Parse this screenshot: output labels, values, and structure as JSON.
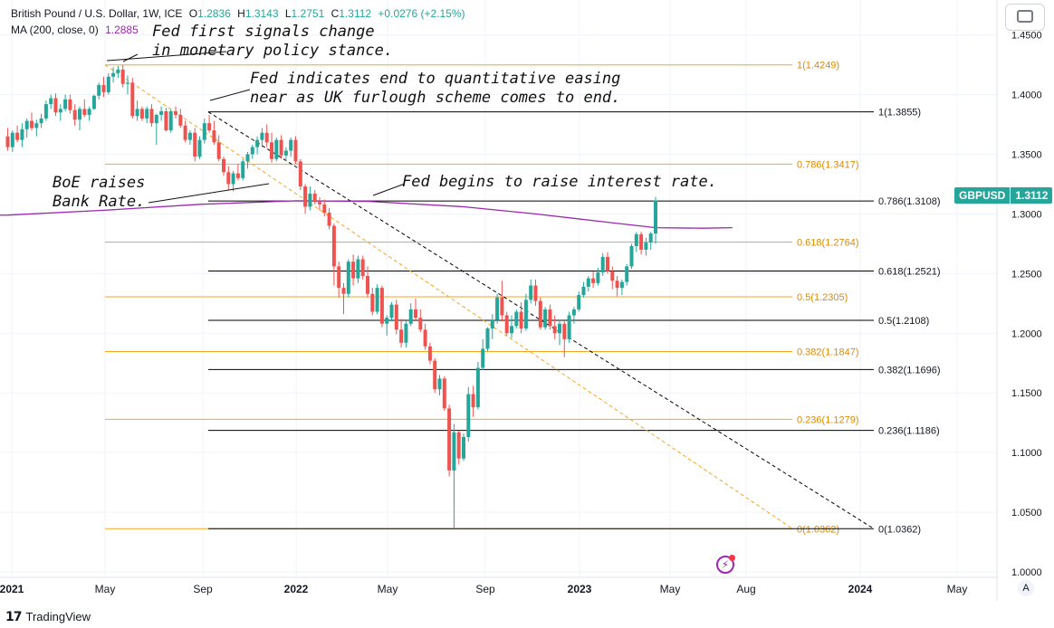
{
  "header": {
    "symbol_title": "British Pound / U.S. Dollar, 1W, ICE",
    "open_label": "O",
    "open_value": "1.2836",
    "high_label": "H",
    "high_value": "1.3143",
    "low_label": "L",
    "low_value": "1.2751",
    "close_label": "C",
    "close_value": "1.3112",
    "change": "+0.0276 (+2.15%)",
    "ma_label": "MA (200, close, 0)",
    "ma_value": "1.2885"
  },
  "price_badge": {
    "symbol": "GBPUSD",
    "value": "1.3112"
  },
  "annotations": {
    "fed_first": "Fed first signals change\nin monetary policy stance.",
    "fed_qe": "Fed indicates end to quantitative easing\nnear as UK furlough scheme comes to end.",
    "boe": "BoE raises\nBank Rate.",
    "fed_raise": "Fed begins to raise interest rate."
  },
  "footer": {
    "brand": "TradingView",
    "auto_button": "A"
  },
  "colors": {
    "up": "#26a69a",
    "down": "#ef5350",
    "ma": "#9c27b0",
    "fib_orange": "#f5a623",
    "fib_black": "#000000",
    "grid": "#f0f3fa"
  },
  "chart_data": {
    "type": "candlestick",
    "title": "British Pound / U.S. Dollar, 1W, ICE",
    "ylim": [
      0.995,
      1.475
    ],
    "y_ticks": [
      "1.0000",
      "1.0500",
      "1.1000",
      "1.1500",
      "1.2000",
      "1.2500",
      "1.3000",
      "1.3500",
      "1.4000",
      "1.4500"
    ],
    "x_ticks": [
      "2021",
      "May",
      "Sep",
      "2022",
      "May",
      "Sep",
      "2023",
      "May",
      "Aug",
      "2024",
      "May"
    ],
    "fib_orange": [
      {
        "label": "1(1.4249)",
        "value": 1.4249
      },
      {
        "label": "0.786(1.3417)",
        "value": 1.3417
      },
      {
        "label": "0.618(1.2764)",
        "value": 1.2764
      },
      {
        "label": "0.5(1.2305)",
        "value": 1.2305
      },
      {
        "label": "0.382(1.1847)",
        "value": 1.1847
      },
      {
        "label": "0.236(1.1279)",
        "value": 1.1279
      },
      {
        "label": "0(1.0362)",
        "value": 1.0362
      }
    ],
    "fib_black": [
      {
        "label": "1(1.3855)",
        "value": 1.3855
      },
      {
        "label": "0.786(1.3108)",
        "value": 1.3108
      },
      {
        "label": "0.618(1.2521)",
        "value": 1.2521
      },
      {
        "label": "0.5(1.2108)",
        "value": 1.2108
      },
      {
        "label": "0.382(1.1696)",
        "value": 1.1696
      },
      {
        "label": "0.236(1.1186)",
        "value": 1.1186
      },
      {
        "label": "0(1.0362)",
        "value": 1.0362
      }
    ],
    "candles": [
      [
        1.365,
        1.372,
        1.353,
        1.356
      ],
      [
        1.356,
        1.37,
        1.352,
        1.368
      ],
      [
        1.368,
        1.374,
        1.36,
        1.362
      ],
      [
        1.362,
        1.376,
        1.356,
        1.371
      ],
      [
        1.371,
        1.38,
        1.364,
        1.378
      ],
      [
        1.378,
        1.385,
        1.37,
        1.372
      ],
      [
        1.372,
        1.379,
        1.365,
        1.376
      ],
      [
        1.376,
        1.384,
        1.372,
        1.38
      ],
      [
        1.38,
        1.395,
        1.378,
        1.392
      ],
      [
        1.392,
        1.4,
        1.388,
        1.397
      ],
      [
        1.397,
        1.401,
        1.382,
        1.385
      ],
      [
        1.385,
        1.392,
        1.378,
        1.388
      ],
      [
        1.388,
        1.4,
        1.386,
        1.396
      ],
      [
        1.396,
        1.4,
        1.384,
        1.387
      ],
      [
        1.387,
        1.392,
        1.374,
        1.379
      ],
      [
        1.379,
        1.39,
        1.37,
        1.388
      ],
      [
        1.388,
        1.396,
        1.381,
        1.383
      ],
      [
        1.383,
        1.39,
        1.378,
        1.388
      ],
      [
        1.388,
        1.4,
        1.387,
        1.399
      ],
      [
        1.399,
        1.41,
        1.396,
        1.408
      ],
      [
        1.408,
        1.415,
        1.398,
        1.402
      ],
      [
        1.402,
        1.418,
        1.4,
        1.415
      ],
      [
        1.415,
        1.423,
        1.41,
        1.418
      ],
      [
        1.418,
        1.424,
        1.414,
        1.421
      ],
      [
        1.421,
        1.4249,
        1.406,
        1.409
      ],
      [
        1.409,
        1.416,
        1.4,
        1.41
      ],
      [
        1.41,
        1.414,
        1.38,
        1.382
      ],
      [
        1.382,
        1.395,
        1.378,
        1.388
      ],
      [
        1.388,
        1.39,
        1.378,
        1.38
      ],
      [
        1.38,
        1.39,
        1.376,
        1.388
      ],
      [
        1.388,
        1.392,
        1.373,
        1.376
      ],
      [
        1.376,
        1.384,
        1.358,
        1.383
      ],
      [
        1.383,
        1.39,
        1.378,
        1.386
      ],
      [
        1.386,
        1.389,
        1.369,
        1.37
      ],
      [
        1.37,
        1.388,
        1.368,
        1.386
      ],
      [
        1.386,
        1.39,
        1.38,
        1.383
      ],
      [
        1.383,
        1.388,
        1.372,
        1.374
      ],
      [
        1.374,
        1.378,
        1.36,
        1.362
      ],
      [
        1.362,
        1.37,
        1.358,
        1.368
      ],
      [
        1.368,
        1.372,
        1.344,
        1.348
      ],
      [
        1.348,
        1.365,
        1.346,
        1.362
      ],
      [
        1.362,
        1.38,
        1.359,
        1.376
      ],
      [
        1.376,
        1.383,
        1.368,
        1.37
      ],
      [
        1.37,
        1.378,
        1.358,
        1.36
      ],
      [
        1.36,
        1.366,
        1.344,
        1.346
      ],
      [
        1.346,
        1.348,
        1.332,
        1.335
      ],
      [
        1.335,
        1.34,
        1.32,
        1.325
      ],
      [
        1.325,
        1.336,
        1.319,
        1.334
      ],
      [
        1.334,
        1.342,
        1.328,
        1.33
      ],
      [
        1.33,
        1.346,
        1.328,
        1.344
      ],
      [
        1.344,
        1.352,
        1.338,
        1.35
      ],
      [
        1.35,
        1.358,
        1.346,
        1.356
      ],
      [
        1.356,
        1.365,
        1.35,
        1.362
      ],
      [
        1.362,
        1.372,
        1.356,
        1.368
      ],
      [
        1.368,
        1.375,
        1.356,
        1.36
      ],
      [
        1.36,
        1.368,
        1.343,
        1.346
      ],
      [
        1.346,
        1.364,
        1.344,
        1.362
      ],
      [
        1.362,
        1.366,
        1.346,
        1.349
      ],
      [
        1.349,
        1.356,
        1.344,
        1.353
      ],
      [
        1.353,
        1.364,
        1.348,
        1.362
      ],
      [
        1.362,
        1.365,
        1.342,
        1.344
      ],
      [
        1.344,
        1.346,
        1.32,
        1.323
      ],
      [
        1.323,
        1.325,
        1.3,
        1.306
      ],
      [
        1.306,
        1.323,
        1.303,
        1.317
      ],
      [
        1.317,
        1.32,
        1.308,
        1.31
      ],
      [
        1.31,
        1.314,
        1.303,
        1.308
      ],
      [
        1.308,
        1.312,
        1.298,
        1.301
      ],
      [
        1.301,
        1.305,
        1.287,
        1.29
      ],
      [
        1.29,
        1.292,
        1.24,
        1.256
      ],
      [
        1.256,
        1.26,
        1.23,
        1.238
      ],
      [
        1.238,
        1.242,
        1.216,
        1.233
      ],
      [
        1.233,
        1.262,
        1.23,
        1.26
      ],
      [
        1.26,
        1.266,
        1.24,
        1.246
      ],
      [
        1.246,
        1.265,
        1.242,
        1.262
      ],
      [
        1.262,
        1.265,
        1.245,
        1.248
      ],
      [
        1.248,
        1.256,
        1.23,
        1.233
      ],
      [
        1.233,
        1.238,
        1.215,
        1.218
      ],
      [
        1.218,
        1.241,
        1.216,
        1.238
      ],
      [
        1.238,
        1.24,
        1.205,
        1.208
      ],
      [
        1.208,
        1.215,
        1.198,
        1.213
      ],
      [
        1.213,
        1.226,
        1.21,
        1.224
      ],
      [
        1.224,
        1.228,
        1.199,
        1.203
      ],
      [
        1.203,
        1.212,
        1.188,
        1.192
      ],
      [
        1.192,
        1.21,
        1.188,
        1.208
      ],
      [
        1.208,
        1.225,
        1.206,
        1.22
      ],
      [
        1.22,
        1.229,
        1.21,
        1.213
      ],
      [
        1.213,
        1.22,
        1.201,
        1.203
      ],
      [
        1.203,
        1.208,
        1.186,
        1.189
      ],
      [
        1.189,
        1.192,
        1.174,
        1.177
      ],
      [
        1.177,
        1.179,
        1.15,
        1.153
      ],
      [
        1.153,
        1.165,
        1.148,
        1.162
      ],
      [
        1.162,
        1.164,
        1.135,
        1.137
      ],
      [
        1.137,
        1.14,
        1.08,
        1.085
      ],
      [
        1.085,
        1.124,
        1.0362,
        1.117
      ],
      [
        1.117,
        1.118,
        1.09,
        1.095
      ],
      [
        1.095,
        1.116,
        1.093,
        1.113
      ],
      [
        1.113,
        1.155,
        1.109,
        1.149
      ],
      [
        1.149,
        1.156,
        1.13,
        1.138
      ],
      [
        1.138,
        1.176,
        1.136,
        1.171
      ],
      [
        1.171,
        1.195,
        1.169,
        1.187
      ],
      [
        1.187,
        1.205,
        1.185,
        1.204
      ],
      [
        1.204,
        1.216,
        1.195,
        1.211
      ],
      [
        1.211,
        1.233,
        1.208,
        1.23
      ],
      [
        1.23,
        1.244,
        1.21,
        1.215
      ],
      [
        1.215,
        1.218,
        1.198,
        1.2
      ],
      [
        1.2,
        1.215,
        1.196,
        1.206
      ],
      [
        1.206,
        1.22,
        1.204,
        1.218
      ],
      [
        1.218,
        1.226,
        1.2,
        1.204
      ],
      [
        1.204,
        1.233,
        1.202,
        1.228
      ],
      [
        1.228,
        1.245,
        1.225,
        1.24
      ],
      [
        1.24,
        1.245,
        1.223,
        1.227
      ],
      [
        1.227,
        1.23,
        1.203,
        1.205
      ],
      [
        1.205,
        1.222,
        1.203,
        1.22
      ],
      [
        1.22,
        1.224,
        1.203,
        1.206
      ],
      [
        1.206,
        1.215,
        1.195,
        1.2
      ],
      [
        1.2,
        1.21,
        1.19,
        1.208
      ],
      [
        1.208,
        1.21,
        1.18,
        1.195
      ],
      [
        1.195,
        1.218,
        1.192,
        1.215
      ],
      [
        1.215,
        1.222,
        1.208,
        1.22
      ],
      [
        1.22,
        1.235,
        1.218,
        1.232
      ],
      [
        1.232,
        1.243,
        1.23,
        1.239
      ],
      [
        1.239,
        1.248,
        1.235,
        1.246
      ],
      [
        1.246,
        1.252,
        1.238,
        1.242
      ],
      [
        1.242,
        1.255,
        1.24,
        1.251
      ],
      [
        1.251,
        1.267,
        1.248,
        1.264
      ],
      [
        1.264,
        1.268,
        1.25,
        1.252
      ],
      [
        1.252,
        1.256,
        1.237,
        1.244
      ],
      [
        1.244,
        1.248,
        1.231,
        1.238
      ],
      [
        1.238,
        1.245,
        1.232,
        1.243
      ],
      [
        1.243,
        1.258,
        1.24,
        1.256
      ],
      [
        1.256,
        1.275,
        1.254,
        1.273
      ],
      [
        1.273,
        1.2848,
        1.268,
        1.283
      ],
      [
        1.283,
        1.285,
        1.266,
        1.27
      ],
      [
        1.27,
        1.28,
        1.265,
        1.276
      ],
      [
        1.276,
        1.285,
        1.27,
        1.2836
      ],
      [
        1.2836,
        1.3143,
        1.2751,
        1.3112
      ]
    ],
    "ma200": [
      [
        0,
        1.299
      ],
      [
        20,
        1.303
      ],
      [
        40,
        1.308
      ],
      [
        60,
        1.311
      ],
      [
        75,
        1.3105
      ],
      [
        95,
        1.306
      ],
      [
        110,
        1.3
      ],
      [
        125,
        1.293
      ],
      [
        135,
        1.2885
      ],
      [
        145,
        1.288
      ],
      [
        151,
        1.2885
      ]
    ]
  }
}
